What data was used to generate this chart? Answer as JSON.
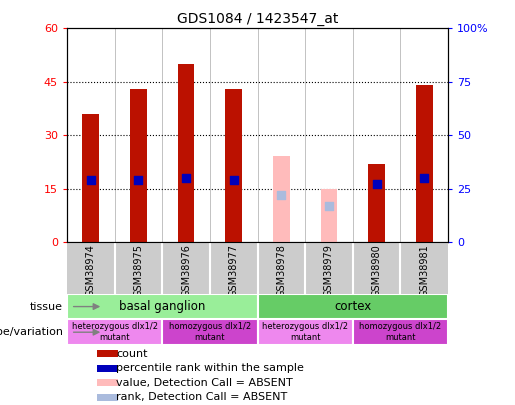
{
  "title": "GDS1084 / 1423547_at",
  "samples": [
    "GSM38974",
    "GSM38975",
    "GSM38976",
    "GSM38977",
    "GSM38978",
    "GSM38979",
    "GSM38980",
    "GSM38981"
  ],
  "count_values": [
    36,
    43,
    50,
    43,
    null,
    null,
    22,
    44
  ],
  "count_absent_values": [
    null,
    null,
    null,
    null,
    24,
    15,
    null,
    null
  ],
  "percentile_values": [
    29,
    29,
    30,
    29,
    null,
    null,
    27,
    30
  ],
  "percentile_absent_values": [
    null,
    null,
    null,
    null,
    22,
    17,
    null,
    null
  ],
  "ylim_left": [
    0,
    60
  ],
  "ylim_right": [
    0,
    100
  ],
  "yticks_left": [
    0,
    15,
    30,
    45,
    60
  ],
  "yticks_right": [
    0,
    25,
    50,
    75,
    100
  ],
  "ytick_labels_left": [
    "0",
    "15",
    "30",
    "45",
    "60"
  ],
  "ytick_labels_right": [
    "0",
    "25",
    "50",
    "75",
    "100%"
  ],
  "bar_color_present": "#bb1100",
  "bar_color_absent": "#ffbbbb",
  "dot_color_present": "#0000bb",
  "dot_color_absent": "#aabbdd",
  "tissue_groups": [
    {
      "label": "basal ganglion",
      "start": 0,
      "end": 4,
      "color": "#99ee99"
    },
    {
      "label": "cortex",
      "start": 4,
      "end": 8,
      "color": "#66cc66"
    }
  ],
  "genotype_groups": [
    {
      "label": "heterozygous dlx1/2\nmutant",
      "start": 0,
      "end": 2,
      "color": "#ee88ee"
    },
    {
      "label": "homozygous dlx1/2\nmutant",
      "start": 2,
      "end": 4,
      "color": "#cc44cc"
    },
    {
      "label": "heterozygous dlx1/2\nmutant",
      "start": 4,
      "end": 6,
      "color": "#ee88ee"
    },
    {
      "label": "homozygous dlx1/2\nmutant",
      "start": 6,
      "end": 8,
      "color": "#cc44cc"
    }
  ],
  "legend_items": [
    {
      "label": "count",
      "color": "#bb1100"
    },
    {
      "label": "percentile rank within the sample",
      "color": "#0000bb"
    },
    {
      "label": "value, Detection Call = ABSENT",
      "color": "#ffbbbb"
    },
    {
      "label": "rank, Detection Call = ABSENT",
      "color": "#aabbdd"
    }
  ],
  "tissue_label": "tissue",
  "genotype_label": "genotype/variation",
  "bar_width": 0.35,
  "dot_size": 30,
  "background_color": "#ffffff",
  "plot_bg_color": "#ffffff",
  "xticklabel_bg": "#cccccc"
}
